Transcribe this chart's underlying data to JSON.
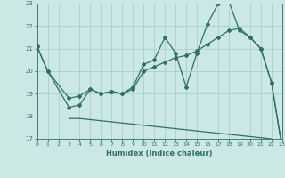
{
  "xlabel": "Humidex (Indice chaleur)",
  "background_color": "#cce8e4",
  "grid_color": "#aad4ce",
  "line_color": "#2d7068",
  "x_range": [
    0,
    23
  ],
  "y_range": [
    17,
    23
  ],
  "yticks": [
    17,
    18,
    19,
    20,
    21,
    22,
    23
  ],
  "xticks": [
    0,
    1,
    2,
    3,
    4,
    5,
    6,
    7,
    8,
    9,
    10,
    11,
    12,
    13,
    14,
    15,
    16,
    17,
    18,
    19,
    20,
    21,
    22,
    23
  ],
  "line1_x": [
    0,
    1,
    3,
    4,
    5,
    6,
    7,
    8,
    9,
    10,
    11,
    12,
    13,
    14,
    15,
    16,
    17,
    18,
    19,
    20,
    21,
    22,
    23
  ],
  "line1_y": [
    21.1,
    20.0,
    18.4,
    18.5,
    19.2,
    19.0,
    19.1,
    19.0,
    19.3,
    20.3,
    20.5,
    21.5,
    20.8,
    19.3,
    20.8,
    22.1,
    23.0,
    23.1,
    21.8,
    21.5,
    21.0,
    19.5,
    16.6
  ],
  "line2_x": [
    0,
    1,
    3,
    4,
    5,
    6,
    7,
    8,
    9,
    10,
    11,
    12,
    13,
    14,
    15,
    16,
    17,
    18,
    19,
    20,
    21,
    22,
    23
  ],
  "line2_y": [
    21.1,
    20.0,
    18.8,
    18.9,
    19.2,
    19.0,
    19.1,
    19.0,
    19.2,
    20.0,
    20.2,
    20.4,
    20.6,
    20.7,
    20.9,
    21.2,
    21.5,
    21.8,
    21.9,
    21.5,
    21.0,
    19.5,
    16.6
  ],
  "line3_x": [
    3,
    4,
    5,
    6,
    7,
    8,
    9,
    10,
    11,
    12,
    13,
    14,
    15,
    16,
    17,
    18,
    19,
    20,
    21,
    22,
    23
  ],
  "line3_y": [
    17.9,
    17.9,
    17.85,
    17.8,
    17.75,
    17.7,
    17.65,
    17.6,
    17.55,
    17.5,
    17.45,
    17.4,
    17.35,
    17.3,
    17.25,
    17.2,
    17.15,
    17.1,
    17.05,
    17.0,
    16.6
  ]
}
